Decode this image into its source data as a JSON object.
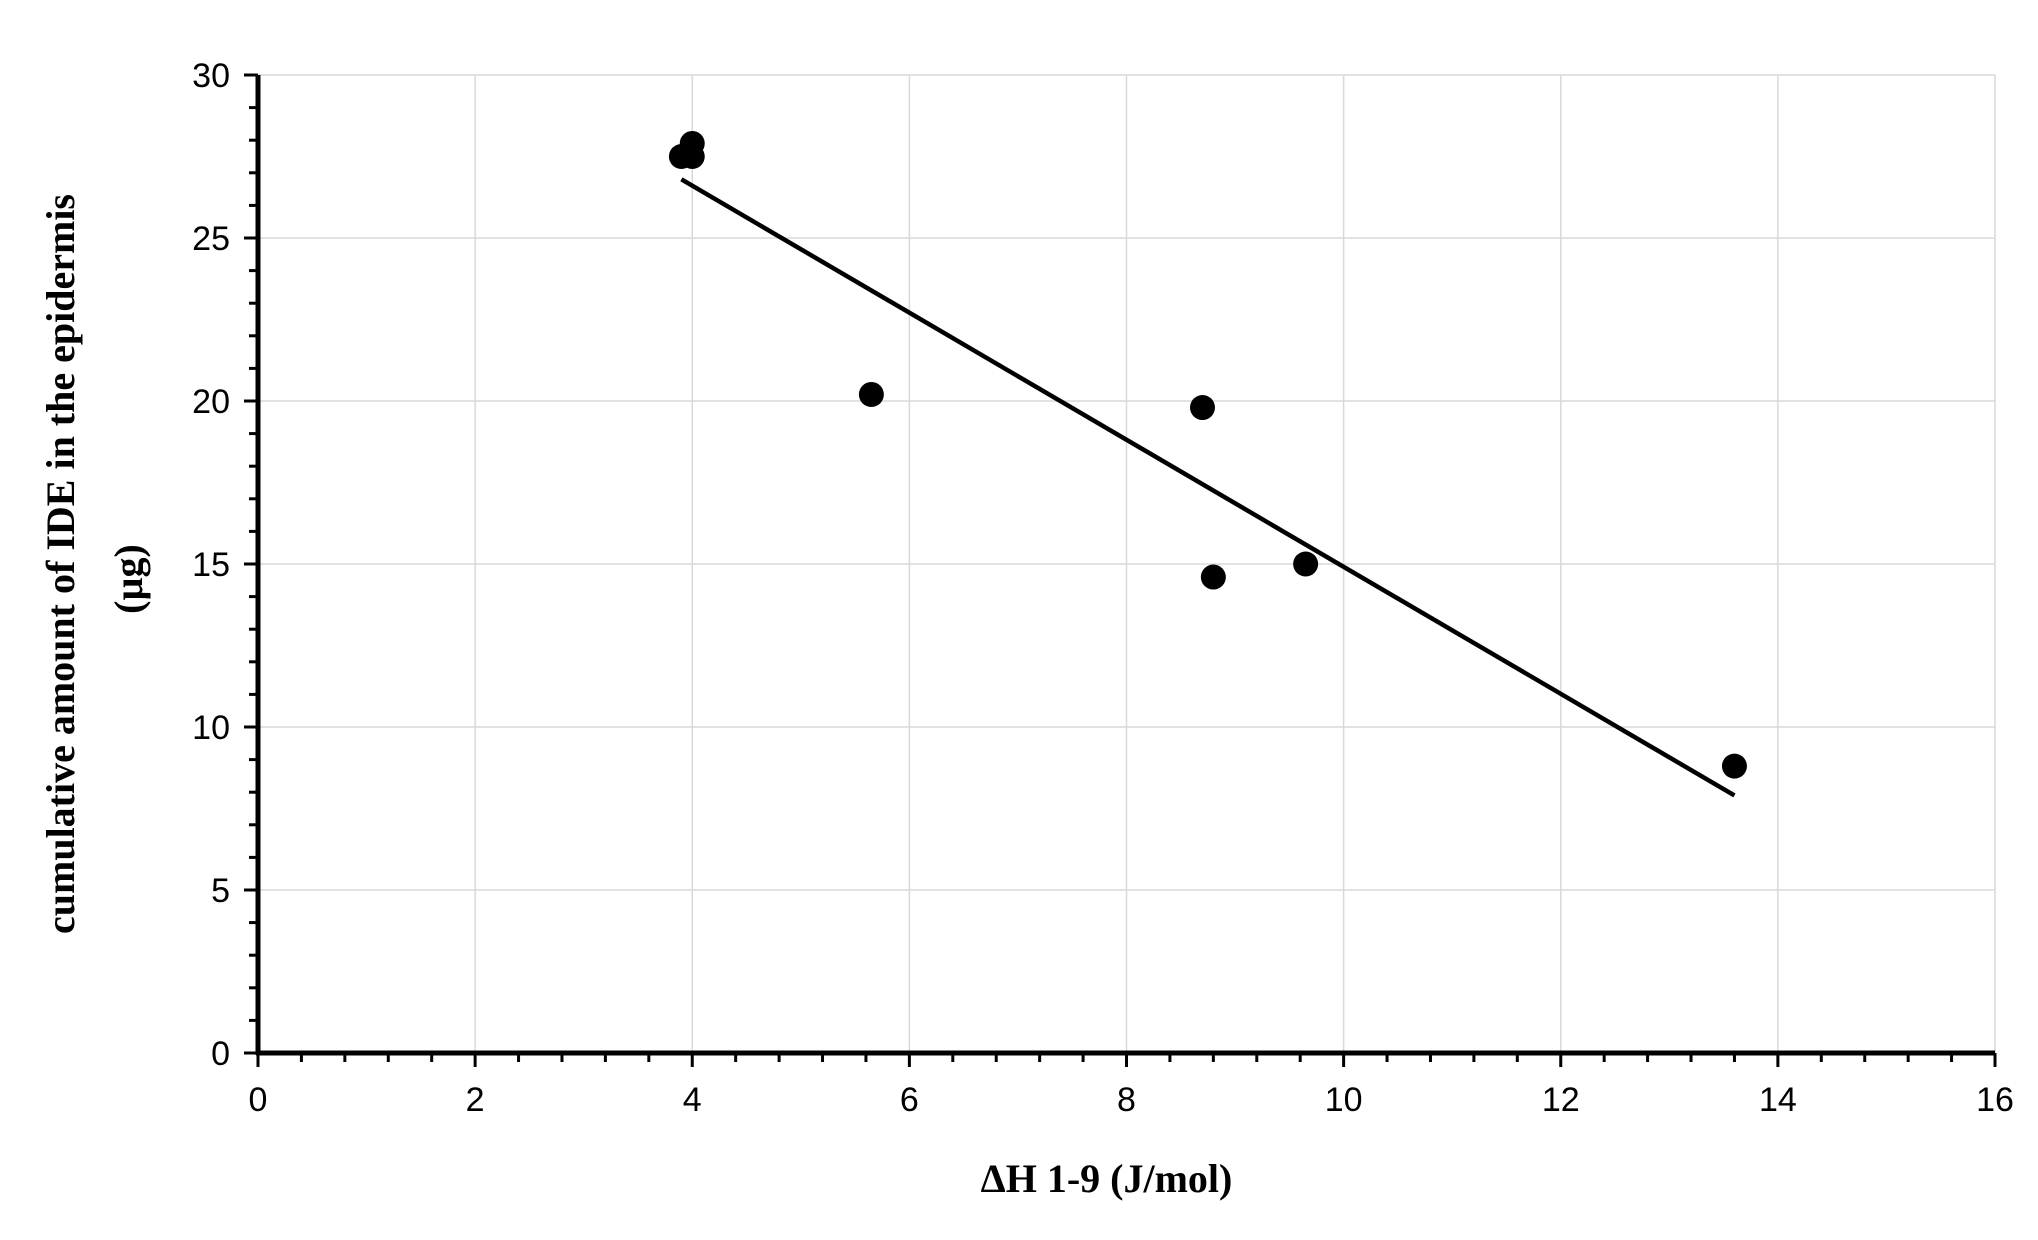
{
  "chart_data": {
    "type": "scatter",
    "title": "",
    "xlabel": "ΔH 1-9 (J/mol)",
    "ylabel_lines": [
      "cumulative amount of IDE in the epidermis",
      "(µg)"
    ],
    "xlim": [
      0,
      16
    ],
    "ylim": [
      0,
      30
    ],
    "x_ticks": [
      0,
      2,
      4,
      6,
      8,
      10,
      12,
      14,
      16
    ],
    "y_ticks": [
      0,
      5,
      10,
      15,
      20,
      25,
      30
    ],
    "x_tick_labels": [
      "0",
      "2",
      "4",
      "6",
      "8",
      "10",
      "12",
      "14",
      "16"
    ],
    "y_tick_labels": [
      "0",
      "5",
      "10",
      "15",
      "20",
      "25",
      "30"
    ],
    "grid": true,
    "legend": "none",
    "series": [
      {
        "points": [
          {
            "x": 3.9,
            "y": 27.5
          },
          {
            "x": 4.0,
            "y": 27.5
          },
          {
            "x": 4.0,
            "y": 27.9
          },
          {
            "x": 5.65,
            "y": 20.2
          },
          {
            "x": 8.7,
            "y": 19.8
          },
          {
            "x": 8.8,
            "y": 14.6
          },
          {
            "x": 9.65,
            "y": 15.0
          },
          {
            "x": 13.6,
            "y": 8.8
          }
        ],
        "color": "#000000"
      }
    ],
    "trendline": {
      "type": "linear",
      "from": {
        "x": 3.9,
        "y": 26.8
      },
      "to": {
        "x": 13.6,
        "y": 7.9
      },
      "color": "#000000"
    }
  }
}
